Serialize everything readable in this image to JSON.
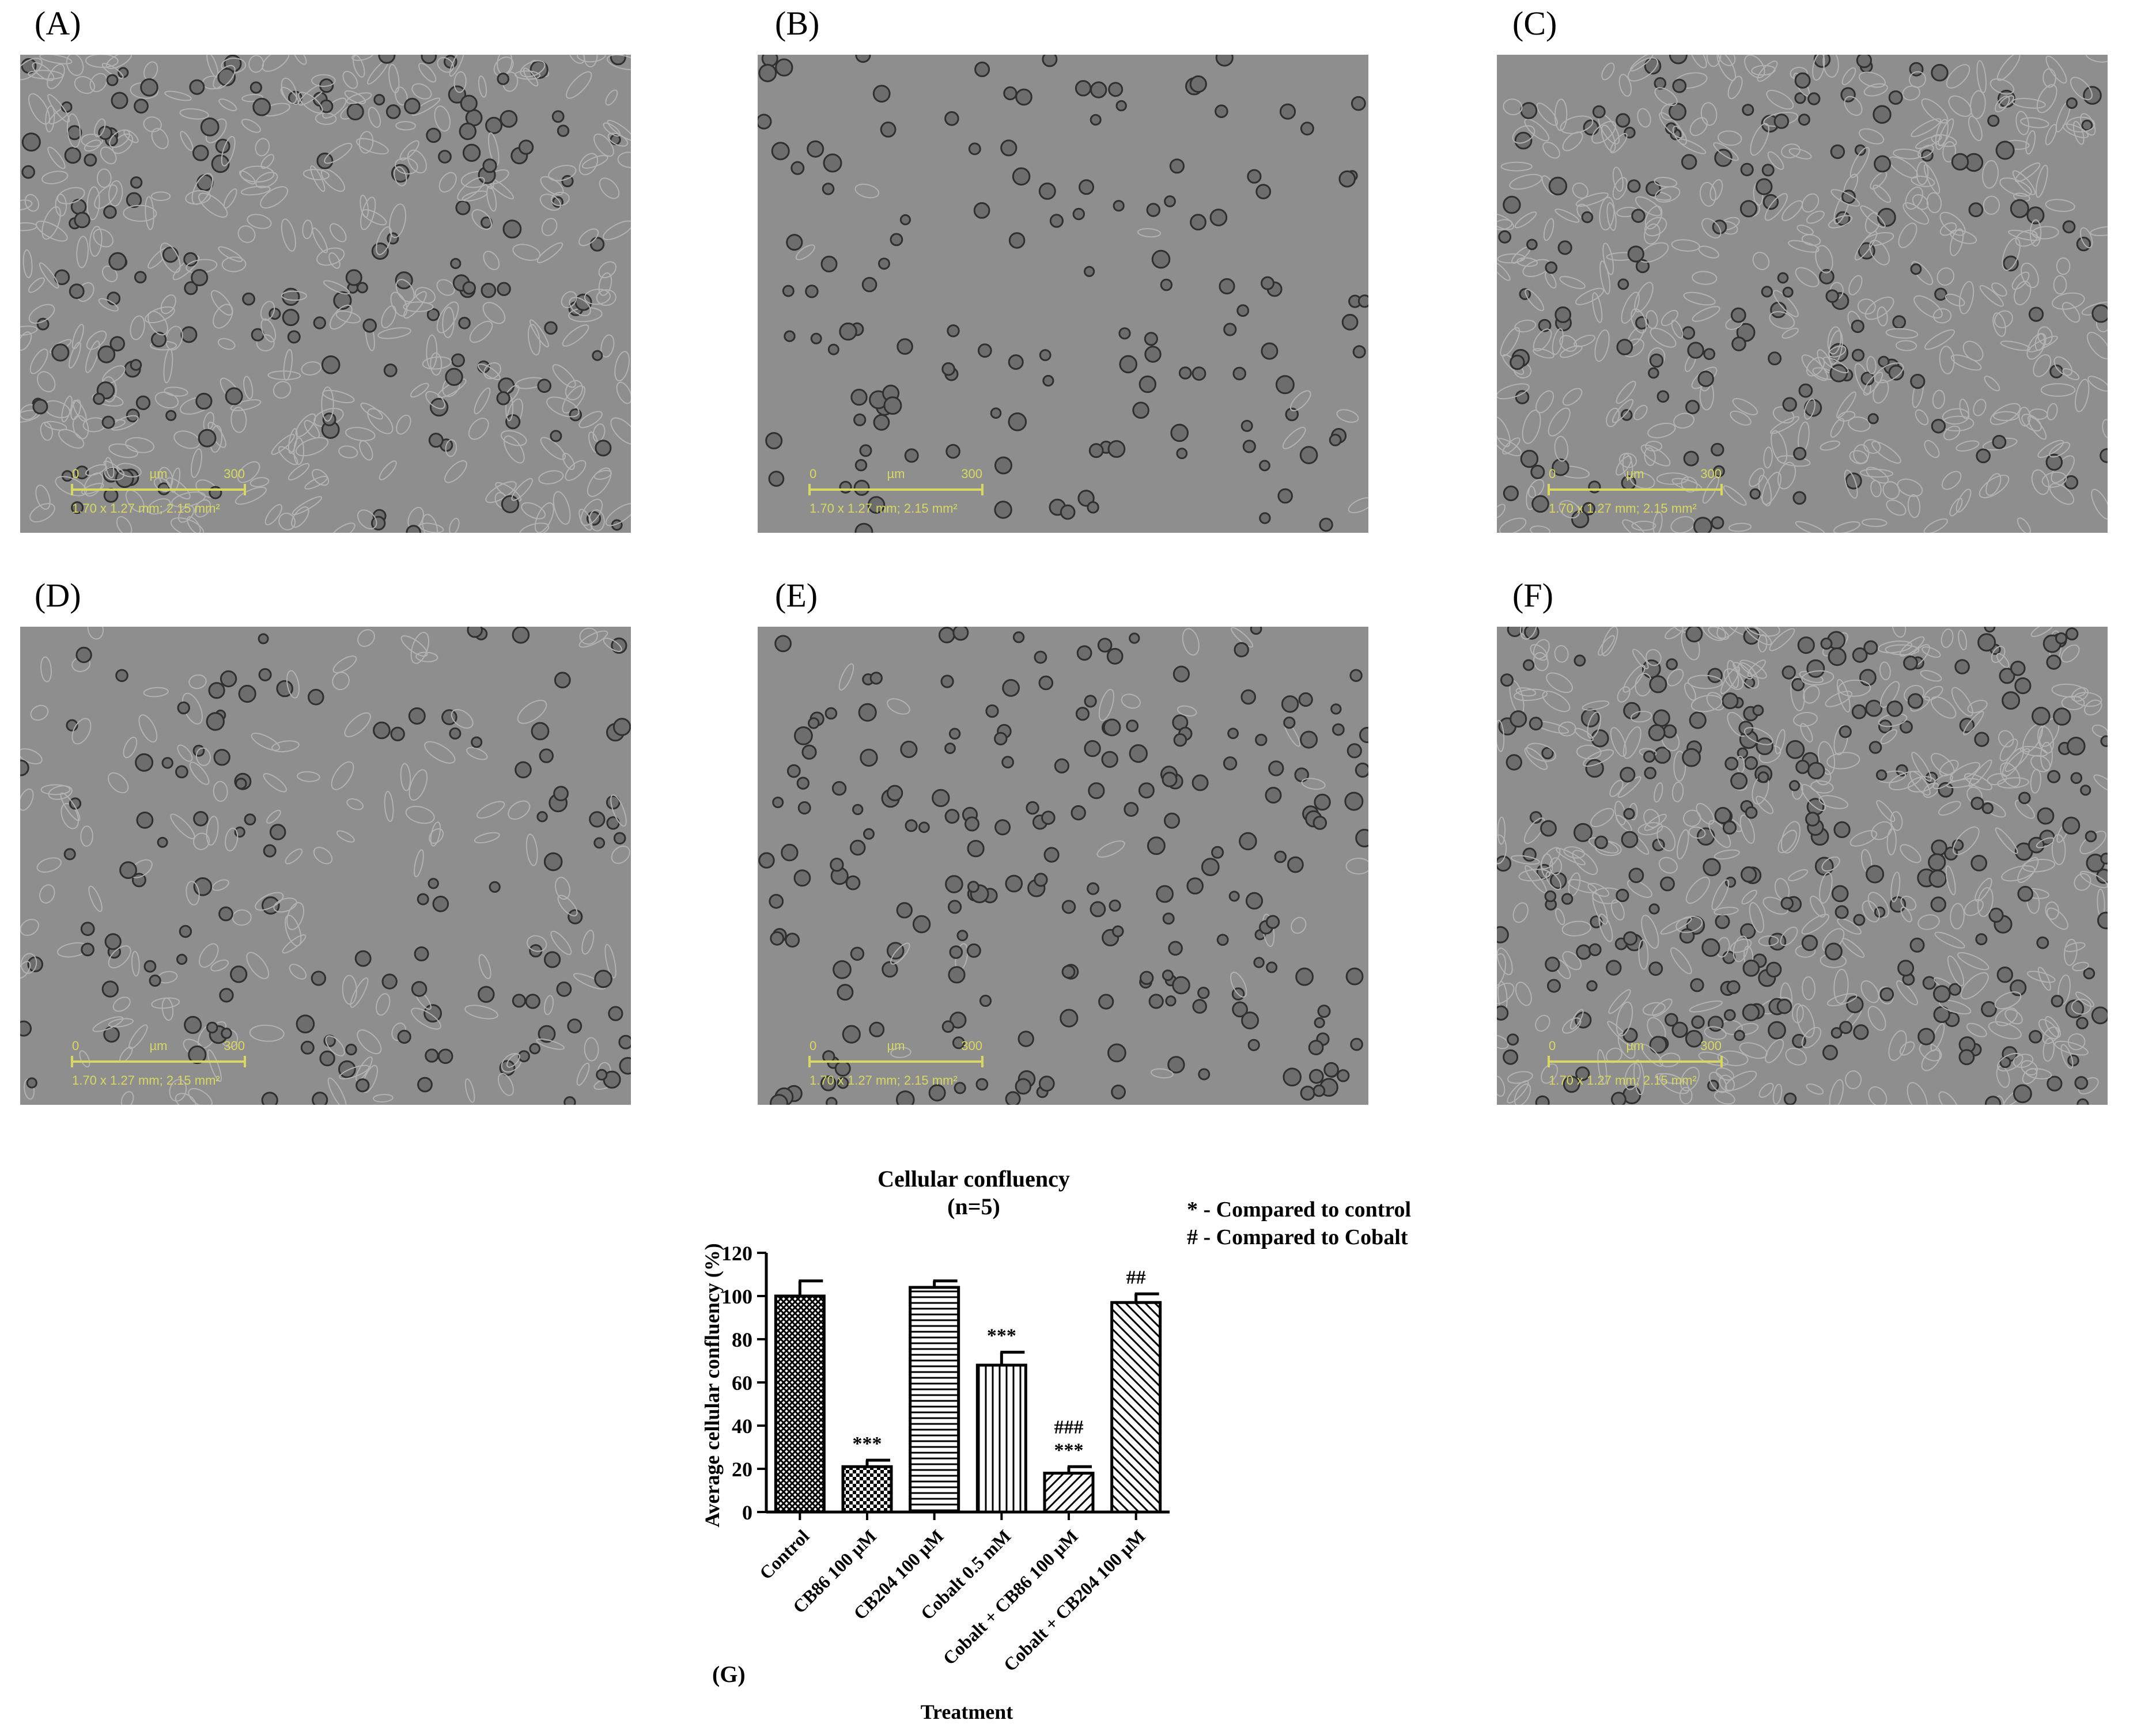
{
  "panels": [
    {
      "label": "(A)",
      "scale_zero": "0",
      "scale_unit": "µm",
      "scale_max": "300",
      "area": "1.70 x 1.27 mm; 2.15 mm²"
    },
    {
      "label": "(B)",
      "scale_zero": "0",
      "scale_unit": "µm",
      "scale_max": "300",
      "area": "1.70 x 1.27 mm; 2.15 mm²"
    },
    {
      "label": "(C)",
      "scale_zero": "0",
      "scale_unit": "µm",
      "scale_max": "300",
      "area": "1.70 x 1.27 mm; 2.15 mm²"
    },
    {
      "label": "(D)",
      "scale_zero": "0",
      "scale_unit": "µm",
      "scale_max": "300",
      "area": "1.70 x 1.27 mm; 2.15 mm²"
    },
    {
      "label": "(E)",
      "scale_zero": "0",
      "scale_unit": "µm",
      "scale_max": "300",
      "area": "1.70 x 1.27 mm; 2.15 mm²"
    },
    {
      "label": "(F)",
      "scale_zero": "0",
      "scale_unit": "µm",
      "scale_max": "300",
      "area": "1.70 x 1.27 mm; 2.15 mm²"
    }
  ],
  "colors": {
    "scalebar": "#d8d860",
    "micro_bg": "#8e8e8e"
  },
  "chart_data": {
    "type": "bar",
    "panel_label": "(G)",
    "title": "Cellular confluency",
    "subtitle": "(n=5)",
    "xlabel": "Treatment",
    "ylabel": "Average cellular confluency (%)",
    "ylim": [
      0,
      120
    ],
    "yticks": [
      0,
      20,
      40,
      60,
      80,
      100,
      120
    ],
    "legend_notes": [
      "* - Compared to control",
      "# - Compared to Cobalt"
    ],
    "categories": [
      "Control",
      "CB86 100 µM",
      "CB204 100 µM",
      "Cobalt 0.5 mM",
      "Cobalt + CB86 100 µM",
      "Cobalt + CB204 100 µM"
    ],
    "values": [
      100,
      21,
      104,
      68,
      18,
      97
    ],
    "errors": [
      7,
      3,
      3,
      6,
      3,
      4
    ],
    "annotations": [
      [],
      [
        "***"
      ],
      [],
      [
        "***"
      ],
      [
        "***",
        "###"
      ],
      [
        "##"
      ]
    ],
    "patterns": [
      "crosshatch",
      "checker",
      "horizontal",
      "vertical",
      "diagonal-right",
      "diagonal-left"
    ]
  }
}
